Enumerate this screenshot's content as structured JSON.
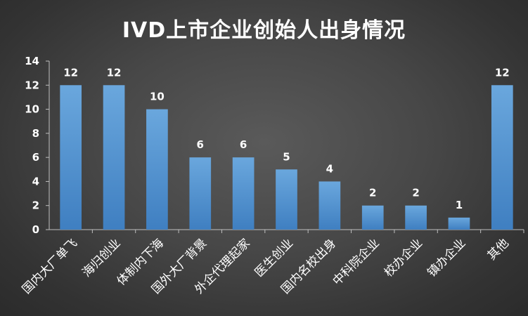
{
  "chart_data": {
    "type": "bar",
    "title": "IVD上市企业创始人出身情况",
    "xlabel": "",
    "ylabel": "",
    "categories": [
      "国内大厂单飞",
      "海归创业",
      "体制内下海",
      "国外大厂背景",
      "外企代理起家",
      "医生创业",
      "国内名校出身",
      "中科院企业",
      "校办企业",
      "镇办企业",
      "其他"
    ],
    "values": [
      12,
      12,
      10,
      6,
      6,
      5,
      4,
      2,
      2,
      1,
      12
    ],
    "ylim": [
      0,
      14
    ],
    "yticks": [
      0,
      2,
      4,
      6,
      8,
      10,
      12,
      14
    ],
    "grid": false,
    "legend": "none",
    "bar_color": "#5b9bd5",
    "bar_color_dark": "#3f7fc1",
    "axis_color": "#bfbfbf",
    "data_labels": true
  }
}
